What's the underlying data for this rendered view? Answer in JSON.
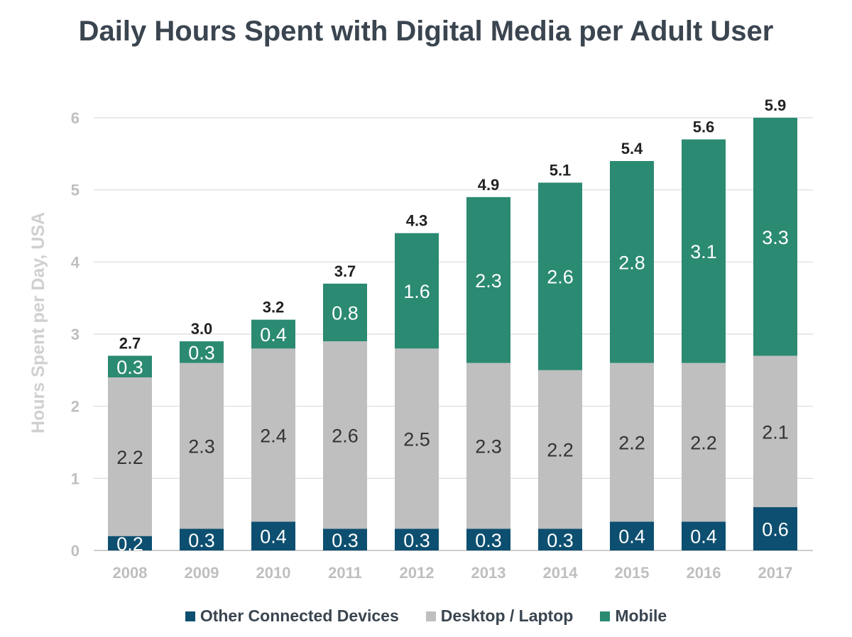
{
  "chart_data": {
    "type": "bar",
    "stacked": true,
    "title": "Daily Hours Spent with Digital Media per Adult User",
    "xlabel": "",
    "ylabel": "Hours Spent per Day, USA",
    "ylim": [
      0,
      6
    ],
    "yticks": [
      "0",
      "1",
      "2",
      "3",
      "4",
      "5",
      "6"
    ],
    "grid": true,
    "legend_position": "bottom",
    "categories": [
      "2008",
      "2009",
      "2010",
      "2011",
      "2012",
      "2013",
      "2014",
      "2015",
      "2016",
      "2017"
    ],
    "series": [
      {
        "name": "Other Connected Devices",
        "color": "#0d4f70",
        "values": [
          0.2,
          0.3,
          0.4,
          0.3,
          0.3,
          0.3,
          0.3,
          0.4,
          0.4,
          0.6
        ]
      },
      {
        "name": "Desktop / Laptop",
        "color": "#bfbfbf",
        "values": [
          2.2,
          2.3,
          2.4,
          2.6,
          2.5,
          2.3,
          2.2,
          2.2,
          2.2,
          2.1
        ]
      },
      {
        "name": "Mobile",
        "color": "#2b8a72",
        "values": [
          0.3,
          0.3,
          0.4,
          0.8,
          1.6,
          2.3,
          2.6,
          2.8,
          3.1,
          3.3
        ]
      }
    ],
    "totals": [
      "2.7",
      "3.0",
      "3.2",
      "3.7",
      "4.3",
      "4.9",
      "5.1",
      "5.4",
      "5.6",
      "5.9"
    ]
  }
}
